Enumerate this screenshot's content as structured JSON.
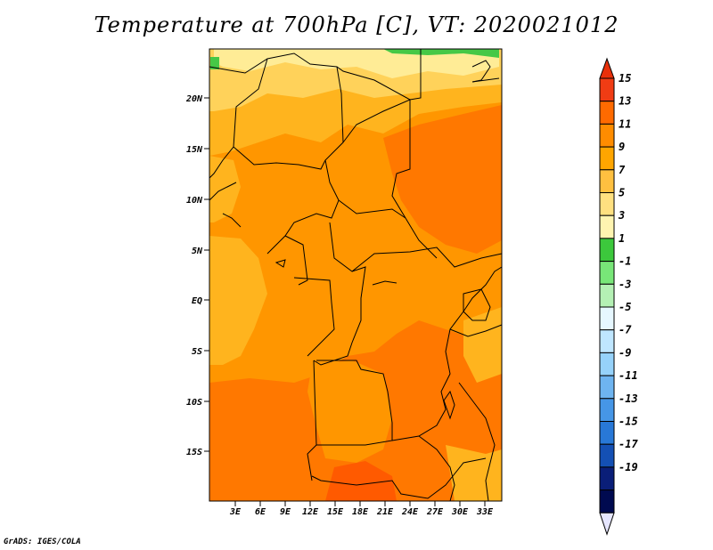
{
  "title": "Temperature at 700hPa [C], VT: 2020021012",
  "credit": "GrADS: IGES/COLA",
  "lat_ticks": [
    "20N",
    "15N",
    "10N",
    "5N",
    "EQ",
    "5S",
    "10S",
    "15S"
  ],
  "lon_ticks": [
    "3E",
    "6E",
    "9E",
    "12E",
    "15E",
    "18E",
    "21E",
    "24E",
    "27E",
    "30E",
    "33E"
  ],
  "colorbar": {
    "labels": [
      "15",
      "13",
      "11",
      "9",
      "7",
      "5",
      "3",
      "1",
      "-1",
      "-3",
      "-5",
      "-7",
      "-9",
      "-11",
      "-13",
      "-15",
      "-17",
      "-19"
    ],
    "colors": [
      "#f03c14",
      "#ff6a00",
      "#ff8c00",
      "#ffa500",
      "#ffc040",
      "#ffe080",
      "#fff4b0",
      "#3cc83c",
      "#78e678",
      "#b4f0b4",
      "#e6f7ff",
      "#bfe6ff",
      "#96d2fa",
      "#6eb4f0",
      "#4696e6",
      "#2878d7",
      "#1450b4",
      "#0a1e78",
      "#000a50"
    ],
    "arrow_top": "#e8300a",
    "arrow_bottom": "#e6e6ff"
  },
  "map": {
    "colors": {
      "t13": "#ff5a00",
      "t11": "#ff7800",
      "t9": "#ff9600",
      "t7": "#ffb41e",
      "t5": "#ffd25a",
      "t3": "#ffec96",
      "t1": "#46c846",
      "border": "#000000"
    }
  }
}
